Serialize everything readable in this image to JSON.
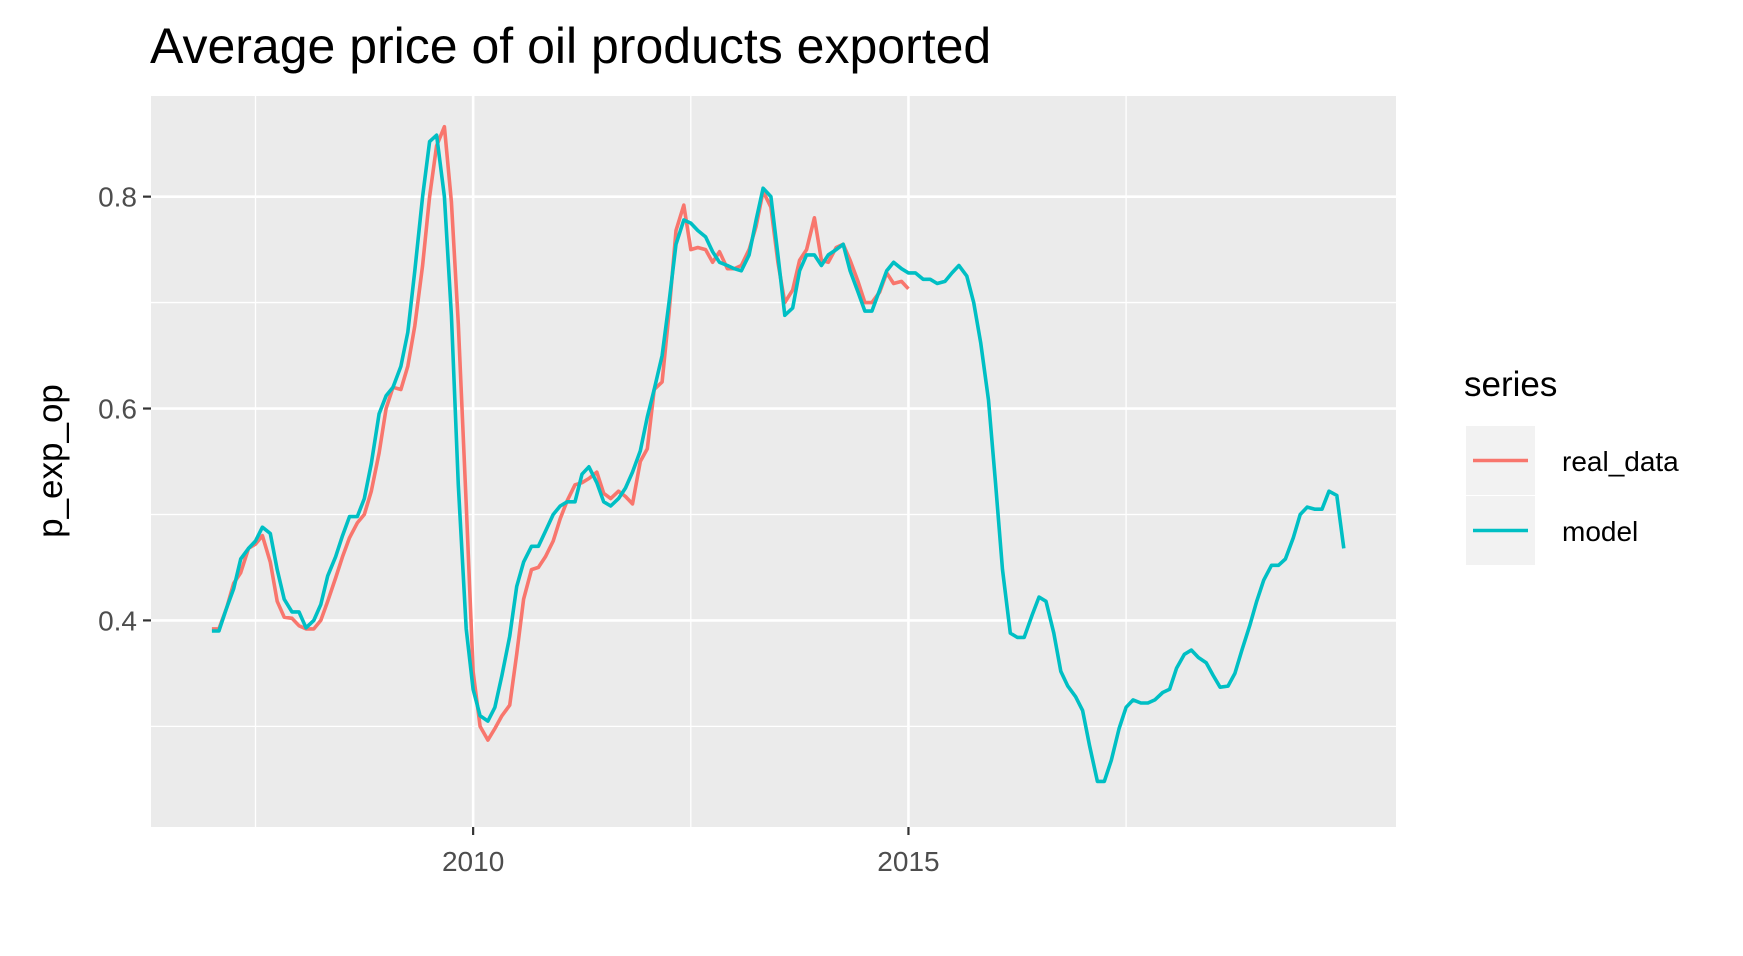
{
  "chart_data": {
    "type": "line",
    "title": "Average price of oil products exported",
    "xlabel": "",
    "ylabel": "p_exp_op",
    "xlim": [
      2006.3,
      2020.6
    ],
    "ylim": [
      0.205,
      0.895
    ],
    "x_ticks": [
      2010,
      2015
    ],
    "y_ticks": [
      0.4,
      0.6,
      0.8
    ],
    "y_tick_labels": [
      "0.4",
      "0.6",
      "0.8"
    ],
    "y_minor_ticks": [
      0.3,
      0.5,
      0.7
    ],
    "grid": true,
    "legend": {
      "title": "series",
      "position": "right"
    },
    "colors": {
      "real_data": "#F8766D",
      "model": "#00BFC4",
      "panel": "#EBEBEB",
      "grid": "#FFFFFF"
    },
    "series": [
      {
        "name": "real_data",
        "color": "#F8766D",
        "points": [
          [
            2007.0,
            0.392
          ],
          [
            2007.08,
            0.392
          ],
          [
            2007.17,
            0.412
          ],
          [
            2007.25,
            0.435
          ],
          [
            2007.33,
            0.445
          ],
          [
            2007.42,
            0.468
          ],
          [
            2007.5,
            0.472
          ],
          [
            2007.58,
            0.48
          ],
          [
            2007.67,
            0.455
          ],
          [
            2007.75,
            0.418
          ],
          [
            2007.83,
            0.403
          ],
          [
            2007.92,
            0.402
          ],
          [
            2008.0,
            0.395
          ],
          [
            2008.08,
            0.392
          ],
          [
            2008.17,
            0.392
          ],
          [
            2008.25,
            0.4
          ],
          [
            2008.33,
            0.418
          ],
          [
            2008.42,
            0.44
          ],
          [
            2008.5,
            0.46
          ],
          [
            2008.58,
            0.478
          ],
          [
            2008.67,
            0.492
          ],
          [
            2008.75,
            0.5
          ],
          [
            2008.83,
            0.522
          ],
          [
            2008.92,
            0.558
          ],
          [
            2009.0,
            0.6
          ],
          [
            2009.08,
            0.62
          ],
          [
            2009.17,
            0.618
          ],
          [
            2009.25,
            0.64
          ],
          [
            2009.33,
            0.678
          ],
          [
            2009.42,
            0.735
          ],
          [
            2009.5,
            0.8
          ],
          [
            2009.58,
            0.848
          ],
          [
            2009.67,
            0.866
          ],
          [
            2009.75,
            0.795
          ],
          [
            2009.83,
            0.68
          ],
          [
            2009.92,
            0.51
          ],
          [
            2010.0,
            0.352
          ],
          [
            2010.08,
            0.3
          ],
          [
            2010.17,
            0.287
          ],
          [
            2010.25,
            0.298
          ],
          [
            2010.33,
            0.31
          ],
          [
            2010.42,
            0.32
          ],
          [
            2010.5,
            0.368
          ],
          [
            2010.58,
            0.42
          ],
          [
            2010.67,
            0.448
          ],
          [
            2010.75,
            0.45
          ],
          [
            2010.83,
            0.46
          ],
          [
            2010.92,
            0.475
          ],
          [
            2011.0,
            0.496
          ],
          [
            2011.08,
            0.513
          ],
          [
            2011.17,
            0.528
          ],
          [
            2011.25,
            0.53
          ],
          [
            2011.33,
            0.534
          ],
          [
            2011.42,
            0.54
          ],
          [
            2011.5,
            0.52
          ],
          [
            2011.58,
            0.515
          ],
          [
            2011.67,
            0.522
          ],
          [
            2011.75,
            0.517
          ],
          [
            2011.83,
            0.51
          ],
          [
            2011.92,
            0.55
          ],
          [
            2012.0,
            0.562
          ],
          [
            2012.08,
            0.618
          ],
          [
            2012.17,
            0.625
          ],
          [
            2012.25,
            0.69
          ],
          [
            2012.33,
            0.768
          ],
          [
            2012.42,
            0.792
          ],
          [
            2012.5,
            0.75
          ],
          [
            2012.58,
            0.752
          ],
          [
            2012.67,
            0.75
          ],
          [
            2012.75,
            0.738
          ],
          [
            2012.83,
            0.748
          ],
          [
            2012.92,
            0.732
          ],
          [
            2013.0,
            0.732
          ],
          [
            2013.08,
            0.735
          ],
          [
            2013.17,
            0.75
          ],
          [
            2013.25,
            0.772
          ],
          [
            2013.33,
            0.805
          ],
          [
            2013.42,
            0.79
          ],
          [
            2013.5,
            0.738
          ],
          [
            2013.58,
            0.7
          ],
          [
            2013.67,
            0.712
          ],
          [
            2013.75,
            0.74
          ],
          [
            2013.83,
            0.75
          ],
          [
            2013.92,
            0.78
          ],
          [
            2014.0,
            0.74
          ],
          [
            2014.08,
            0.738
          ],
          [
            2014.17,
            0.752
          ],
          [
            2014.25,
            0.755
          ],
          [
            2014.33,
            0.74
          ],
          [
            2014.42,
            0.72
          ],
          [
            2014.5,
            0.7
          ],
          [
            2014.58,
            0.7
          ],
          [
            2014.67,
            0.71
          ],
          [
            2014.75,
            0.728
          ],
          [
            2014.83,
            0.718
          ],
          [
            2014.92,
            0.72
          ],
          [
            2015.0,
            0.713
          ]
        ]
      },
      {
        "name": "model",
        "color": "#00BFC4",
        "points": [
          [
            2007.0,
            0.39
          ],
          [
            2007.08,
            0.39
          ],
          [
            2007.17,
            0.412
          ],
          [
            2007.25,
            0.43
          ],
          [
            2007.33,
            0.458
          ],
          [
            2007.42,
            0.468
          ],
          [
            2007.5,
            0.475
          ],
          [
            2007.58,
            0.488
          ],
          [
            2007.67,
            0.482
          ],
          [
            2007.75,
            0.448
          ],
          [
            2007.83,
            0.42
          ],
          [
            2007.92,
            0.408
          ],
          [
            2008.0,
            0.408
          ],
          [
            2008.08,
            0.393
          ],
          [
            2008.17,
            0.4
          ],
          [
            2008.25,
            0.415
          ],
          [
            2008.33,
            0.442
          ],
          [
            2008.42,
            0.46
          ],
          [
            2008.5,
            0.48
          ],
          [
            2008.58,
            0.498
          ],
          [
            2008.67,
            0.498
          ],
          [
            2008.75,
            0.515
          ],
          [
            2008.83,
            0.548
          ],
          [
            2008.92,
            0.595
          ],
          [
            2009.0,
            0.612
          ],
          [
            2009.08,
            0.62
          ],
          [
            2009.17,
            0.64
          ],
          [
            2009.25,
            0.672
          ],
          [
            2009.33,
            0.73
          ],
          [
            2009.42,
            0.8
          ],
          [
            2009.5,
            0.852
          ],
          [
            2009.58,
            0.858
          ],
          [
            2009.67,
            0.8
          ],
          [
            2009.75,
            0.688
          ],
          [
            2009.83,
            0.528
          ],
          [
            2009.92,
            0.392
          ],
          [
            2010.0,
            0.335
          ],
          [
            2010.08,
            0.31
          ],
          [
            2010.17,
            0.305
          ],
          [
            2010.25,
            0.318
          ],
          [
            2010.33,
            0.348
          ],
          [
            2010.42,
            0.385
          ],
          [
            2010.5,
            0.432
          ],
          [
            2010.58,
            0.455
          ],
          [
            2010.67,
            0.47
          ],
          [
            2010.75,
            0.47
          ],
          [
            2010.83,
            0.484
          ],
          [
            2010.92,
            0.5
          ],
          [
            2011.0,
            0.508
          ],
          [
            2011.08,
            0.512
          ],
          [
            2011.17,
            0.512
          ],
          [
            2011.25,
            0.538
          ],
          [
            2011.33,
            0.545
          ],
          [
            2011.42,
            0.53
          ],
          [
            2011.5,
            0.512
          ],
          [
            2011.58,
            0.508
          ],
          [
            2011.67,
            0.515
          ],
          [
            2011.75,
            0.525
          ],
          [
            2011.83,
            0.54
          ],
          [
            2011.92,
            0.56
          ],
          [
            2012.0,
            0.592
          ],
          [
            2012.08,
            0.618
          ],
          [
            2012.17,
            0.65
          ],
          [
            2012.25,
            0.7
          ],
          [
            2012.33,
            0.755
          ],
          [
            2012.42,
            0.778
          ],
          [
            2012.5,
            0.775
          ],
          [
            2012.58,
            0.768
          ],
          [
            2012.67,
            0.762
          ],
          [
            2012.75,
            0.748
          ],
          [
            2012.83,
            0.738
          ],
          [
            2012.92,
            0.735
          ],
          [
            2013.0,
            0.732
          ],
          [
            2013.08,
            0.73
          ],
          [
            2013.17,
            0.745
          ],
          [
            2013.25,
            0.778
          ],
          [
            2013.33,
            0.808
          ],
          [
            2013.42,
            0.8
          ],
          [
            2013.5,
            0.745
          ],
          [
            2013.58,
            0.688
          ],
          [
            2013.67,
            0.695
          ],
          [
            2013.75,
            0.73
          ],
          [
            2013.83,
            0.745
          ],
          [
            2013.92,
            0.745
          ],
          [
            2014.0,
            0.735
          ],
          [
            2014.08,
            0.745
          ],
          [
            2014.17,
            0.75
          ],
          [
            2014.25,
            0.755
          ],
          [
            2014.33,
            0.73
          ],
          [
            2014.42,
            0.71
          ],
          [
            2014.5,
            0.692
          ],
          [
            2014.58,
            0.692
          ],
          [
            2014.67,
            0.712
          ],
          [
            2014.75,
            0.73
          ],
          [
            2014.83,
            0.738
          ],
          [
            2014.92,
            0.732
          ],
          [
            2015.0,
            0.728
          ],
          [
            2015.08,
            0.728
          ],
          [
            2015.17,
            0.722
          ],
          [
            2015.25,
            0.722
          ],
          [
            2015.33,
            0.718
          ],
          [
            2015.42,
            0.72
          ],
          [
            2015.5,
            0.728
          ],
          [
            2015.58,
            0.735
          ],
          [
            2015.67,
            0.725
          ],
          [
            2015.75,
            0.7
          ],
          [
            2015.83,
            0.662
          ],
          [
            2015.92,
            0.608
          ],
          [
            2016.0,
            0.53
          ],
          [
            2016.08,
            0.448
          ],
          [
            2016.17,
            0.388
          ],
          [
            2016.25,
            0.384
          ],
          [
            2016.33,
            0.384
          ],
          [
            2016.42,
            0.405
          ],
          [
            2016.5,
            0.422
          ],
          [
            2016.58,
            0.418
          ],
          [
            2016.67,
            0.388
          ],
          [
            2016.75,
            0.352
          ],
          [
            2016.83,
            0.338
          ],
          [
            2016.92,
            0.328
          ],
          [
            2017.0,
            0.315
          ],
          [
            2017.08,
            0.282
          ],
          [
            2017.17,
            0.248
          ],
          [
            2017.25,
            0.248
          ],
          [
            2017.33,
            0.268
          ],
          [
            2017.42,
            0.298
          ],
          [
            2017.5,
            0.318
          ],
          [
            2017.58,
            0.325
          ],
          [
            2017.67,
            0.322
          ],
          [
            2017.75,
            0.322
          ],
          [
            2017.83,
            0.325
          ],
          [
            2017.92,
            0.332
          ],
          [
            2018.0,
            0.335
          ],
          [
            2018.08,
            0.355
          ],
          [
            2018.17,
            0.368
          ],
          [
            2018.25,
            0.372
          ],
          [
            2018.33,
            0.365
          ],
          [
            2018.42,
            0.36
          ],
          [
            2018.5,
            0.348
          ],
          [
            2018.58,
            0.337
          ],
          [
            2018.67,
            0.338
          ],
          [
            2018.75,
            0.35
          ],
          [
            2018.83,
            0.372
          ],
          [
            2018.92,
            0.395
          ],
          [
            2019.0,
            0.418
          ],
          [
            2019.08,
            0.438
          ],
          [
            2019.17,
            0.452
          ],
          [
            2019.25,
            0.452
          ],
          [
            2019.33,
            0.458
          ],
          [
            2019.42,
            0.478
          ],
          [
            2019.5,
            0.5
          ],
          [
            2019.58,
            0.507
          ],
          [
            2019.67,
            0.505
          ],
          [
            2019.75,
            0.505
          ],
          [
            2019.83,
            0.522
          ],
          [
            2019.92,
            0.518
          ],
          [
            2020.0,
            0.468
          ]
        ]
      }
    ]
  }
}
